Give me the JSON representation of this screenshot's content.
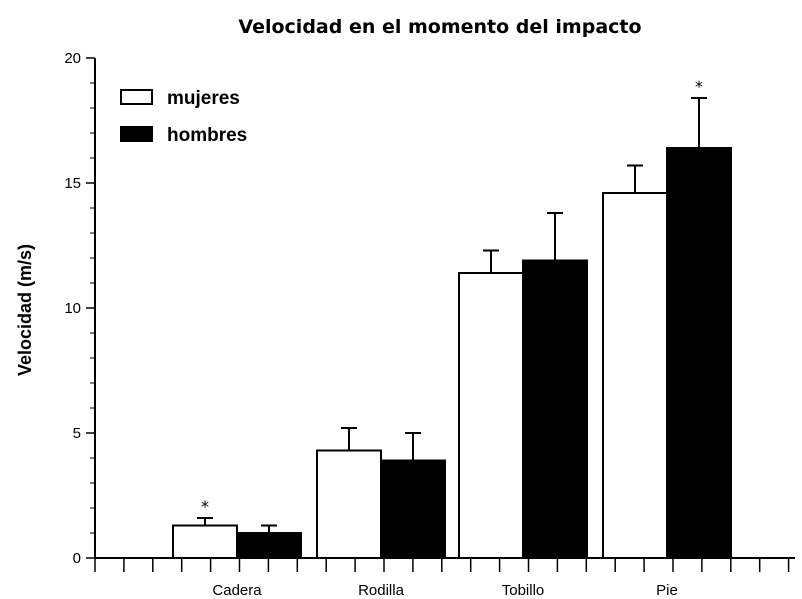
{
  "chart_data": {
    "type": "bar",
    "title": "Velocidad en el momento del impacto",
    "xlabel": "",
    "ylabel": "Velocidad (m/s)",
    "categories": [
      "Cadera",
      "Rodilla",
      "Tobillo",
      "Pie"
    ],
    "series": [
      {
        "name": "mujeres",
        "color": "#ffffff",
        "values": [
          1.3,
          4.3,
          11.4,
          14.6
        ],
        "errors": [
          0.3,
          0.9,
          0.9,
          1.1
        ],
        "significance": [
          "*",
          "",
          "",
          ""
        ]
      },
      {
        "name": "hombres",
        "color": "#000000",
        "values": [
          1.0,
          3.9,
          11.9,
          16.4
        ],
        "errors": [
          0.3,
          1.1,
          1.9,
          2.0
        ],
        "significance": [
          "",
          "",
          "",
          "*"
        ]
      }
    ],
    "ylim": [
      0,
      20
    ],
    "yticks": [
      0,
      5,
      10,
      15,
      20
    ],
    "grid": false,
    "legend_position": "top-left"
  }
}
